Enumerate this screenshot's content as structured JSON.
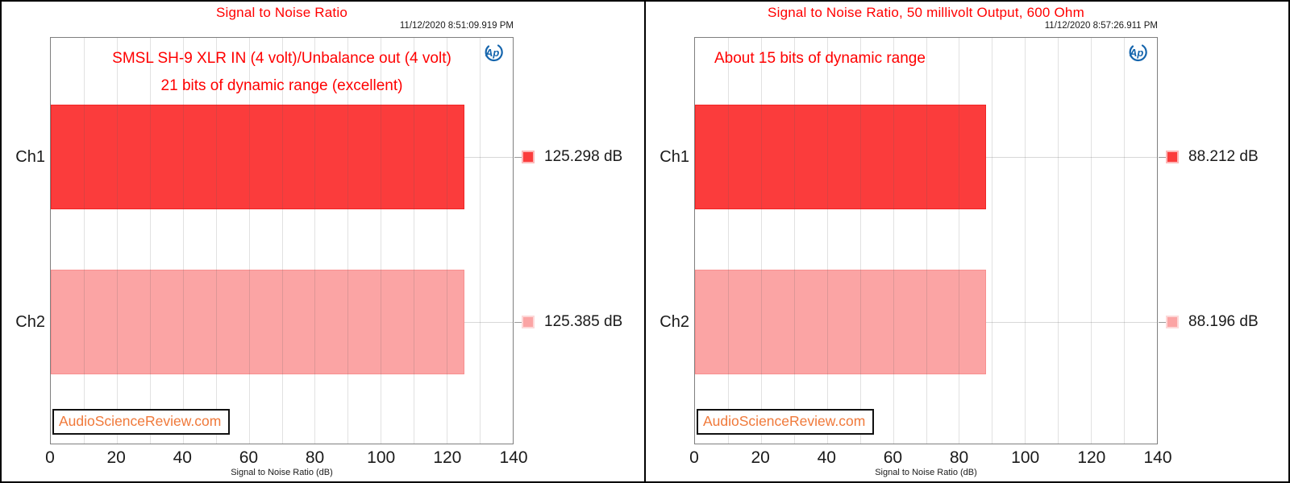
{
  "colors": {
    "title_red": "#ff0000",
    "annotation_red": "#ff0000",
    "watermark_orange": "#f0793a",
    "logo_blue": "#1565ad",
    "series_red": "#fb3c3c",
    "series_red_border": "#f12525",
    "series_pink": "#fba4a4",
    "series_pink_border": "#f88f8f",
    "legend_red_border": "#fcb8b8",
    "legend_pink_border": "#fdd8d8"
  },
  "chart_data": [
    {
      "type": "bar",
      "orientation": "horizontal",
      "title": "Signal to Noise Ratio",
      "timestamp": "11/12/2020 8:51:09.919 PM",
      "annotation": [
        "SMSL SH-9 XLR IN (4 volt)/Unbalance out (4 volt)",
        "21 bits of dynamic range (excellent)"
      ],
      "categories": [
        "Ch1",
        "Ch2"
      ],
      "values": [
        125.298,
        125.385
      ],
      "value_labels": [
        "125.298 dB",
        "125.385 dB"
      ],
      "series_colors": [
        "#fb3c3c",
        "#fba4a4"
      ],
      "series_border_colors": [
        "#f12525",
        "#f88f8f"
      ],
      "legend_swatch_borders": [
        "#fcb8b8",
        "#fdd8d8"
      ],
      "xlabel": "Signal to Noise Ratio (dB)",
      "xlim": [
        0,
        140
      ],
      "xticks": [
        "0",
        "20",
        "40",
        "60",
        "80",
        "100",
        "120",
        "140"
      ],
      "grid_step": 10,
      "grid": true,
      "legend_position": "right",
      "watermark": "AudioScienceReview.com",
      "logo_text": "Ap"
    },
    {
      "type": "bar",
      "orientation": "horizontal",
      "title": "Signal to Noise Ratio, 50 millivolt Output, 600 Ohm",
      "timestamp": "11/12/2020 8:57:26.911 PM",
      "annotation": [
        "About 15 bits of dynamic range"
      ],
      "categories": [
        "Ch1",
        "Ch2"
      ],
      "values": [
        88.212,
        88.196
      ],
      "value_labels": [
        "88.212 dB",
        "88.196 dB"
      ],
      "series_colors": [
        "#fb3c3c",
        "#fba4a4"
      ],
      "series_border_colors": [
        "#f12525",
        "#f88f8f"
      ],
      "legend_swatch_borders": [
        "#fcb8b8",
        "#fdd8d8"
      ],
      "xlabel": "Signal to Noise Ratio (dB)",
      "xlim": [
        0,
        140
      ],
      "xticks": [
        "0",
        "20",
        "40",
        "60",
        "80",
        "100",
        "120",
        "140"
      ],
      "grid_step": 10,
      "grid": true,
      "legend_position": "right",
      "watermark": "AudioScienceReview.com",
      "logo_text": "Ap"
    }
  ]
}
